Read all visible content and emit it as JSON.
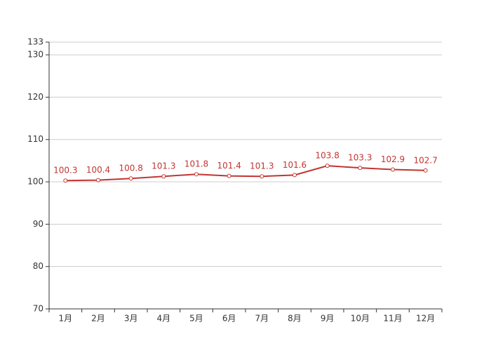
{
  "chart_data": {
    "type": "line",
    "categories": [
      "1月",
      "2月",
      "3月",
      "4月",
      "5月",
      "6月",
      "7月",
      "8月",
      "9月",
      "10月",
      "11月",
      "12月"
    ],
    "values": [
      100.3,
      100.4,
      100.8,
      101.3,
      101.8,
      101.4,
      101.3,
      101.6,
      103.8,
      103.3,
      102.9,
      102.7
    ],
    "color": "#c23531",
    "ylim": [
      70,
      133
    ],
    "yticks": [
      70,
      80,
      90,
      100,
      110,
      120,
      130,
      133
    ],
    "grid": true
  }
}
